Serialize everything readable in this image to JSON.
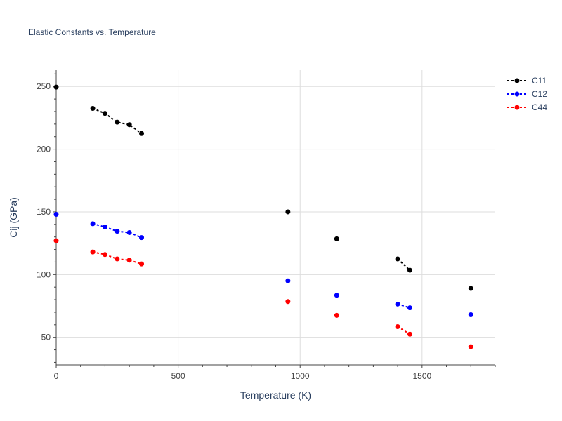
{
  "chart_data": {
    "type": "scatter",
    "title": "Elastic Constants vs. Temperature",
    "xlabel": "Temperature (K)",
    "ylabel": "Cij (GPa)",
    "xlim": [
      0,
      1800
    ],
    "ylim": [
      28,
      263
    ],
    "x_ticks": [
      0,
      500,
      1000,
      1500
    ],
    "y_ticks": [
      50,
      100,
      150,
      200,
      250
    ],
    "grid": true,
    "legend_position": "top-right",
    "series": [
      {
        "name": "C11",
        "color": "#000000",
        "points": [
          {
            "x": 0,
            "y": 249.5
          },
          {
            "x": 150,
            "y": 232.5
          },
          {
            "x": 200,
            "y": 228.5
          },
          {
            "x": 250,
            "y": 221.5
          },
          {
            "x": 300,
            "y": 219.5
          },
          {
            "x": 350,
            "y": 212.5
          },
          {
            "x": 950,
            "y": 150
          },
          {
            "x": 1150,
            "y": 128.5
          },
          {
            "x": 1400,
            "y": 112.5
          },
          {
            "x": 1450,
            "y": 103.5
          },
          {
            "x": 1700,
            "y": 89
          }
        ],
        "segments": [
          [
            0
          ],
          [
            150,
            200,
            250,
            300,
            350
          ],
          [
            950
          ],
          [
            1150
          ],
          [
            1400,
            1450
          ],
          [
            1700
          ]
        ]
      },
      {
        "name": "C12",
        "color": "#0000ff",
        "points": [
          {
            "x": 0,
            "y": 148
          },
          {
            "x": 150,
            "y": 140.5
          },
          {
            "x": 200,
            "y": 138
          },
          {
            "x": 250,
            "y": 134.5
          },
          {
            "x": 300,
            "y": 133.5
          },
          {
            "x": 350,
            "y": 129.5
          },
          {
            "x": 950,
            "y": 95
          },
          {
            "x": 1150,
            "y": 83.5
          },
          {
            "x": 1400,
            "y": 76.5
          },
          {
            "x": 1450,
            "y": 73.5
          },
          {
            "x": 1700,
            "y": 68
          }
        ],
        "segments": [
          [
            0
          ],
          [
            150,
            200,
            250,
            300,
            350
          ],
          [
            950
          ],
          [
            1150
          ],
          [
            1400,
            1450
          ],
          [
            1700
          ]
        ]
      },
      {
        "name": "C44",
        "color": "#ff0000",
        "points": [
          {
            "x": 0,
            "y": 127
          },
          {
            "x": 150,
            "y": 118
          },
          {
            "x": 200,
            "y": 116
          },
          {
            "x": 250,
            "y": 112.5
          },
          {
            "x": 300,
            "y": 111.5
          },
          {
            "x": 350,
            "y": 108.5
          },
          {
            "x": 950,
            "y": 78.5
          },
          {
            "x": 1150,
            "y": 67.5
          },
          {
            "x": 1400,
            "y": 58.5
          },
          {
            "x": 1450,
            "y": 52.5
          },
          {
            "x": 1700,
            "y": 42.5
          }
        ],
        "segments": [
          [
            0
          ],
          [
            150,
            200,
            250,
            300,
            350
          ],
          [
            950
          ],
          [
            1150
          ],
          [
            1400,
            1450
          ],
          [
            1700
          ]
        ]
      }
    ]
  }
}
